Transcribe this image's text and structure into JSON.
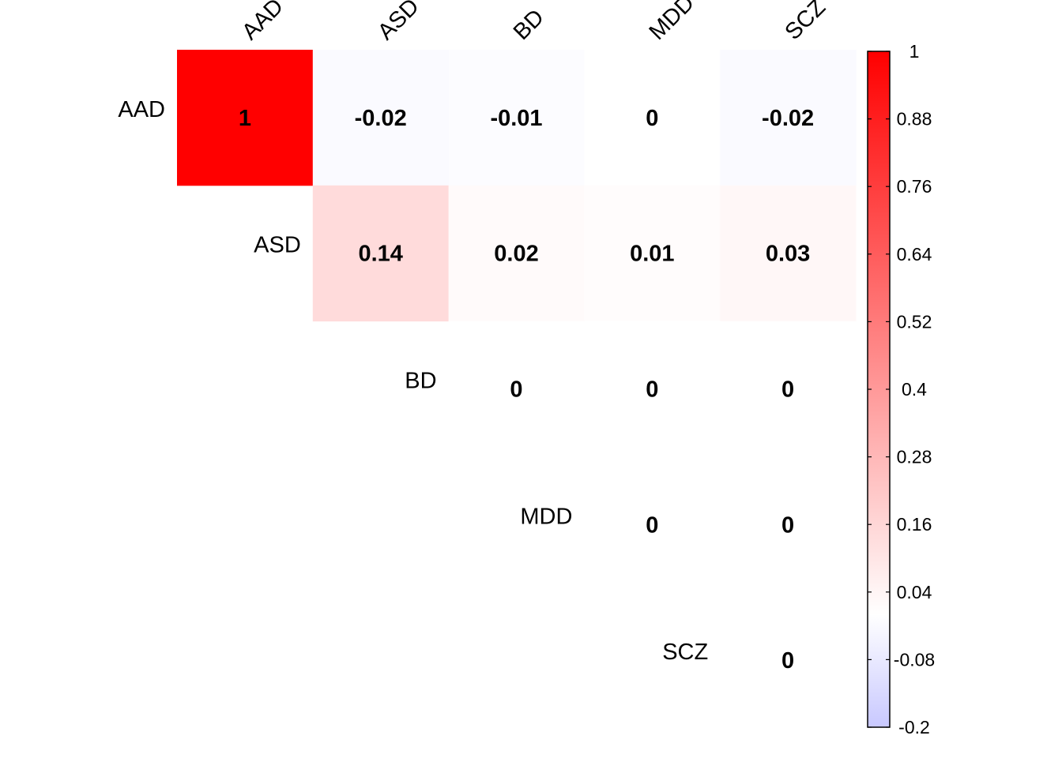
{
  "chart_data": {
    "type": "heatmap",
    "variant": "upper-triangle correlation matrix",
    "title": "",
    "row_labels": [
      "AAD",
      "ASD",
      "BD",
      "MDD",
      "SCZ"
    ],
    "col_labels": [
      "AAD",
      "ASD",
      "BD",
      "MDD",
      "SCZ"
    ],
    "values": [
      [
        1,
        -0.02,
        -0.01,
        0,
        -0.02
      ],
      [
        null,
        0.14,
        0.02,
        0.01,
        0.03
      ],
      [
        null,
        null,
        0,
        0,
        0
      ],
      [
        null,
        null,
        null,
        0,
        0
      ],
      [
        null,
        null,
        null,
        null,
        0
      ]
    ],
    "display": [
      [
        "1",
        "-0.02",
        "-0.01",
        "0",
        "-0.02"
      ],
      [
        null,
        "0.14",
        "0.02",
        "0.01",
        "0.03"
      ],
      [
        null,
        null,
        "0",
        "0",
        "0"
      ],
      [
        null,
        null,
        null,
        "0",
        "0"
      ],
      [
        null,
        null,
        null,
        null,
        "0"
      ]
    ],
    "color_scale": {
      "min": -0.2,
      "max": 1,
      "neutral_value": 0,
      "neg_color": "#c8c8ff",
      "zero_color": "#ffffff",
      "pos_color": "#ff0000",
      "ticks": [
        -0.2,
        -0.08,
        0.04,
        0.16,
        0.28,
        0.4,
        0.52,
        0.64,
        0.76,
        0.88,
        1
      ],
      "tick_labels": [
        "-0.2",
        "-0.08",
        "0.04",
        "0.16",
        "0.28",
        "0.4",
        "0.52",
        "0.64",
        "0.76",
        "0.88",
        "1"
      ]
    },
    "legend": "right"
  }
}
